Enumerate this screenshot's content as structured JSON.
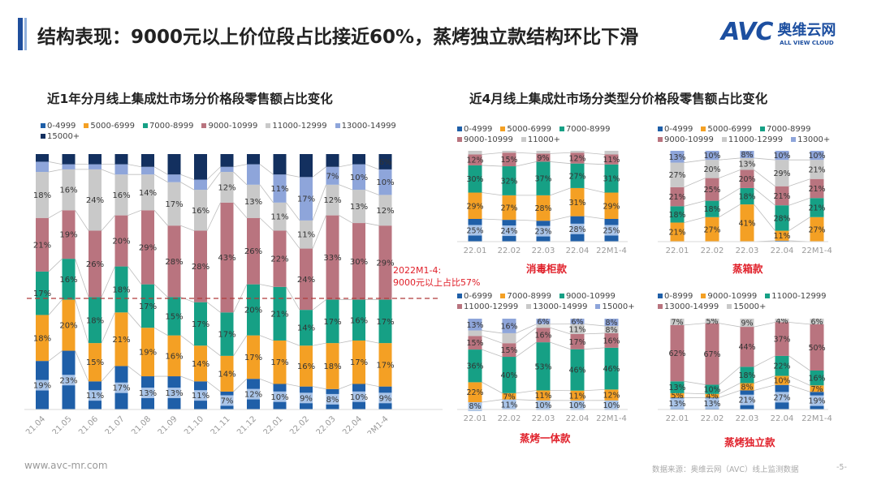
{
  "header": {
    "title": "结构表现：9000元以上价位段占比接近60%，蒸烤独立款结构环比下滑",
    "logo_text": "AVC",
    "logo_cn": "奥维云网",
    "logo_en": "ALL VIEW CLOUD"
  },
  "left_panel": {
    "subtitle": "近1年分月线上集成灶市场分价格段零售额占比变化"
  },
  "right_panel": {
    "subtitle": "近4月线上集成灶市场分类型分价格段零售额占比变化"
  },
  "annotation": {
    "line1": "2022M1-4:",
    "line2": "9000元以上占比57%"
  },
  "footer": {
    "url": "www.avc-mr.com",
    "source": "数据来源：奥维云网（AVC）线上监测数据",
    "page": "-5-"
  },
  "chart_data": [
    {
      "type": "bar",
      "stacked": true,
      "percent": true,
      "title": "近1年分月线上集成灶市场分价格段零售额占比变化",
      "categories": [
        "21.04",
        "21.05",
        "21.06",
        "21.07",
        "21.08",
        "21.09",
        "21.10",
        "21.11",
        "21.12",
        "22.01",
        "22.02",
        "22.03",
        "22.04",
        "22M1-4"
      ],
      "legend_placement": "top",
      "reference_line": {
        "value_from_top_percent": 57,
        "style": "dashed",
        "color": "#b03a3a"
      },
      "series": [
        {
          "name": "0-4999",
          "color": "#1f5fa8",
          "values": [
            19,
            23,
            11,
            17,
            13,
            13,
            11,
            7,
            12,
            10,
            9,
            8,
            10,
            9
          ]
        },
        {
          "name": "5000-6999",
          "color": "#f4a024",
          "values": [
            18,
            20,
            15,
            21,
            19,
            16,
            14,
            14,
            17,
            17,
            16,
            18,
            17,
            17
          ]
        },
        {
          "name": "7000-8999",
          "color": "#16a085",
          "values": [
            17,
            16,
            18,
            18,
            17,
            15,
            17,
            17,
            20,
            21,
            14,
            17,
            16,
            17
          ]
        },
        {
          "name": "9000-10999",
          "color": "#b9747f",
          "values": [
            21,
            19,
            26,
            20,
            29,
            28,
            28,
            43,
            26,
            22,
            24,
            33,
            30,
            29
          ]
        },
        {
          "name": "11000-12999",
          "color": "#c9c9c9",
          "values": [
            18,
            16,
            24,
            16,
            14,
            17,
            16,
            12,
            13,
            11,
            11,
            12,
            13,
            12
          ]
        },
        {
          "name": "13000-14999",
          "color": "#8ea5da",
          "values": [
            4,
            2,
            2,
            4,
            3,
            3,
            4,
            2,
            8,
            11,
            17,
            7,
            10,
            10
          ]
        },
        {
          "name": "15000+",
          "color": "#13305f",
          "values": [
            3,
            4,
            4,
            4,
            5,
            8,
            10,
            5,
            4,
            8,
            9,
            5,
            4,
            6
          ]
        }
      ]
    },
    {
      "type": "bar",
      "stacked": true,
      "percent": true,
      "caption": "消毒柜款",
      "categories": [
        "22.01",
        "22.02",
        "22.03",
        "22.04",
        "22M1-4"
      ],
      "series": [
        {
          "name": "0-4999",
          "color": "#1f5fa8",
          "values": [
            25,
            24,
            23,
            28,
            25
          ]
        },
        {
          "name": "5000-6999",
          "color": "#f4a024",
          "values": [
            29,
            27,
            28,
            31,
            29
          ]
        },
        {
          "name": "7000-8999",
          "color": "#16a085",
          "values": [
            30,
            32,
            37,
            27,
            31
          ]
        },
        {
          "name": "9000-10999",
          "color": "#b9747f",
          "values": [
            12,
            15,
            9,
            12,
            11
          ]
        },
        {
          "name": "11000+",
          "color": "#c9c9c9",
          "values": [
            4,
            2,
            3,
            2,
            4
          ]
        }
      ]
    },
    {
      "type": "bar",
      "stacked": true,
      "percent": true,
      "caption": "蒸箱款",
      "categories": [
        "22.01",
        "22.02",
        "22.03",
        "22.04",
        "22M1-4"
      ],
      "series": [
        {
          "name": "0-4999",
          "color": "#1f5fa8",
          "values": [
            0,
            0,
            0,
            1,
            0
          ]
        },
        {
          "name": "5000-6999",
          "color": "#f4a024",
          "values": [
            21,
            27,
            41,
            11,
            27
          ]
        },
        {
          "name": "7000-8999",
          "color": "#16a085",
          "values": [
            18,
            18,
            18,
            28,
            21
          ]
        },
        {
          "name": "9000-10999",
          "color": "#b9747f",
          "values": [
            21,
            25,
            20,
            21,
            21
          ]
        },
        {
          "name": "11000-12999",
          "color": "#c9c9c9",
          "values": [
            27,
            20,
            13,
            29,
            21
          ]
        },
        {
          "name": "13000+",
          "color": "#8ea5da",
          "values": [
            13,
            10,
            8,
            10,
            10
          ]
        }
      ]
    },
    {
      "type": "bar",
      "stacked": true,
      "percent": true,
      "caption": "蒸烤一体款",
      "categories": [
        "22.01",
        "22.02",
        "22.03",
        "22.04",
        "22M1-4"
      ],
      "series": [
        {
          "name": "0-6999",
          "color": "#1f5fa8",
          "values": [
            8,
            11,
            10,
            10,
            10
          ]
        },
        {
          "name": "7000-8999",
          "color": "#f4a024",
          "values": [
            22,
            7,
            11,
            11,
            12
          ]
        },
        {
          "name": "9000-10999",
          "color": "#16a085",
          "values": [
            36,
            40,
            53,
            46,
            46
          ]
        },
        {
          "name": "11000-12999",
          "color": "#b9747f",
          "values": [
            15,
            15,
            16,
            17,
            16
          ]
        },
        {
          "name": "13000-14999",
          "color": "#c9c9c9",
          "values": [
            6,
            11,
            4,
            11,
            8
          ]
        },
        {
          "name": "15000+",
          "color": "#8ea5da",
          "values": [
            13,
            16,
            6,
            6,
            8
          ]
        }
      ]
    },
    {
      "type": "bar",
      "stacked": true,
      "percent": true,
      "caption": "蒸烤独立款",
      "categories": [
        "22.01",
        "22.02",
        "22.03",
        "22.04",
        "22M1-4"
      ],
      "series": [
        {
          "name": "0-8999",
          "color": "#1f5fa8",
          "values": [
            13,
            13,
            21,
            27,
            19
          ]
        },
        {
          "name": "9000-10999",
          "color": "#f4a024",
          "values": [
            5,
            4,
            8,
            10,
            7
          ]
        },
        {
          "name": "11000-12999",
          "color": "#16a085",
          "values": [
            13,
            10,
            18,
            22,
            16
          ]
        },
        {
          "name": "13000-14999",
          "color": "#b9747f",
          "values": [
            62,
            67,
            44,
            37,
            50
          ]
        },
        {
          "name": "15000+",
          "color": "#c9c9c9",
          "values": [
            7,
            5,
            9,
            4,
            6
          ]
        }
      ]
    }
  ]
}
